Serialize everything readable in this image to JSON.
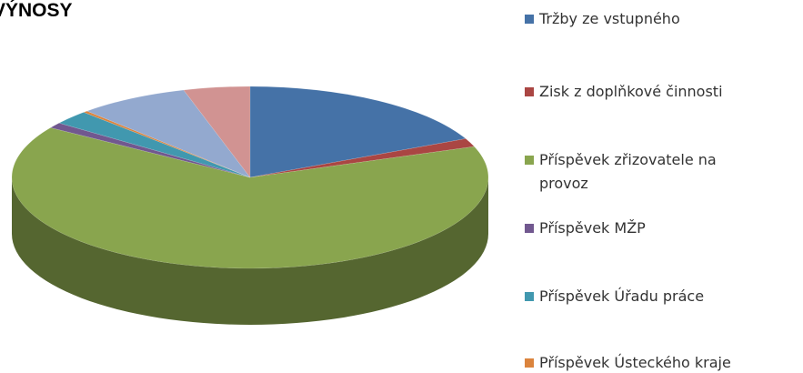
{
  "chart_data": {
    "type": "pie3d",
    "title": "VÝNOSY",
    "categories": [
      "Tržby ze vstupného",
      "Zisk z doplňkové činnosti",
      "Příspěvek zřizovatele na provoz",
      "Příspěvek MŽP",
      "Příspěvek Úřadu práce",
      "Příspěvek Ústeckého kraje",
      null,
      null
    ],
    "values": [
      18,
      1.5,
      64.7,
      1,
      2.5,
      0.3,
      7.5,
      4.5
    ],
    "colors": [
      "#4572a7",
      "#aa4643",
      "#89a54e",
      "#71588f",
      "#4198af",
      "#db843d",
      "#93a9cf",
      "#d19392"
    ],
    "legend": "right"
  }
}
